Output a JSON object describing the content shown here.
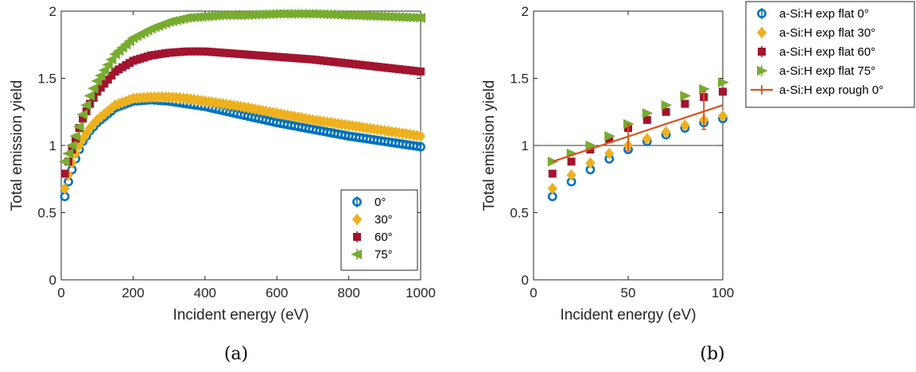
{
  "chart_data": [
    {
      "type": "scatter",
      "panel_label": "(a)",
      "xlabel": "Incident energy (eV)",
      "ylabel": "Total emission yield",
      "xlim": [
        0,
        1000
      ],
      "ylim": [
        0,
        2
      ],
      "xticks": [
        "0",
        "200",
        "400",
        "600",
        "800",
        "1000"
      ],
      "yticks": [
        "0",
        "0.5",
        "1",
        "1.5",
        "2"
      ],
      "legend_position": "bottom-right",
      "series": [
        {
          "name": "0°",
          "color": "#0072BD",
          "marker": "circle",
          "x": [
            10,
            20,
            30,
            40,
            50,
            60,
            80,
            100,
            150,
            200,
            250,
            300,
            350,
            400,
            450,
            500,
            600,
            700,
            800,
            900,
            1000
          ],
          "y": [
            0.62,
            0.73,
            0.82,
            0.9,
            0.97,
            1.03,
            1.11,
            1.17,
            1.28,
            1.33,
            1.34,
            1.33,
            1.31,
            1.29,
            1.26,
            1.23,
            1.17,
            1.12,
            1.07,
            1.03,
            0.99
          ]
        },
        {
          "name": "30°",
          "color": "#EDB120",
          "marker": "diamond",
          "x": [
            10,
            20,
            30,
            40,
            50,
            60,
            80,
            100,
            150,
            200,
            250,
            300,
            350,
            400,
            450,
            500,
            600,
            700,
            800,
            900,
            1000
          ],
          "y": [
            0.68,
            0.78,
            0.87,
            0.94,
            1.0,
            1.05,
            1.13,
            1.19,
            1.3,
            1.35,
            1.36,
            1.36,
            1.35,
            1.33,
            1.31,
            1.29,
            1.24,
            1.19,
            1.15,
            1.11,
            1.07
          ]
        },
        {
          "name": "60°",
          "color": "#A2142F",
          "marker": "square",
          "x": [
            10,
            20,
            30,
            40,
            50,
            60,
            80,
            100,
            150,
            200,
            250,
            300,
            350,
            400,
            450,
            500,
            600,
            700,
            800,
            900,
            1000
          ],
          "y": [
            0.79,
            0.88,
            0.97,
            1.05,
            1.13,
            1.2,
            1.31,
            1.4,
            1.55,
            1.63,
            1.67,
            1.69,
            1.7,
            1.7,
            1.69,
            1.68,
            1.66,
            1.64,
            1.61,
            1.58,
            1.55
          ]
        },
        {
          "name": "75°",
          "color": "#77AC30",
          "marker": "triangle-left",
          "x": [
            10,
            20,
            30,
            40,
            50,
            60,
            80,
            100,
            150,
            200,
            250,
            300,
            350,
            400,
            450,
            500,
            600,
            700,
            800,
            900,
            1000
          ],
          "y": [
            0.88,
            0.94,
            1.0,
            1.07,
            1.14,
            1.23,
            1.37,
            1.48,
            1.68,
            1.8,
            1.87,
            1.92,
            1.95,
            1.96,
            1.97,
            1.97,
            1.98,
            1.98,
            1.97,
            1.96,
            1.95
          ]
        }
      ]
    },
    {
      "type": "scatter",
      "panel_label": "(b)",
      "xlabel": "Incident energy (eV)",
      "ylabel": "Total emission yield",
      "xlim": [
        0,
        100
      ],
      "ylim": [
        0,
        2
      ],
      "xticks": [
        "0",
        "50",
        "100"
      ],
      "yticks": [
        "0",
        "0.5",
        "1",
        "1.5",
        "2"
      ],
      "reference_line_y": 1,
      "legend_position": "outside-right",
      "series": [
        {
          "name": "a-Si:H exp flat 0°",
          "color": "#0072BD",
          "marker": "circle",
          "x": [
            10,
            20,
            30,
            40,
            50,
            60,
            70,
            80,
            90,
            100
          ],
          "y": [
            0.62,
            0.73,
            0.82,
            0.9,
            0.97,
            1.03,
            1.08,
            1.13,
            1.17,
            1.2
          ]
        },
        {
          "name": "a-Si:H exp flat 30°",
          "color": "#EDB120",
          "marker": "diamond",
          "x": [
            10,
            20,
            30,
            40,
            50,
            60,
            70,
            80,
            90,
            100
          ],
          "y": [
            0.68,
            0.78,
            0.87,
            0.94,
            1.0,
            1.05,
            1.1,
            1.15,
            1.19,
            1.22
          ]
        },
        {
          "name": "a-Si:H exp flat 60°",
          "color": "#A2142F",
          "marker": "square",
          "x": [
            10,
            20,
            30,
            40,
            50,
            60,
            70,
            80,
            90,
            100
          ],
          "y": [
            0.79,
            0.88,
            0.97,
            1.05,
            1.13,
            1.19,
            1.25,
            1.31,
            1.36,
            1.4
          ]
        },
        {
          "name": "a-Si:H exp flat 75°",
          "color": "#77AC30",
          "marker": "triangle-right",
          "x": [
            10,
            20,
            30,
            40,
            50,
            60,
            70,
            80,
            90,
            100
          ],
          "y": [
            0.88,
            0.94,
            1.0,
            1.07,
            1.16,
            1.24,
            1.3,
            1.37,
            1.42,
            1.47
          ]
        },
        {
          "name": "a-Si:H exp rough 0°",
          "color": "#D95319",
          "marker": "line",
          "x": [
            10,
            50,
            90,
            100
          ],
          "y": [
            0.88,
            1.06,
            1.26,
            1.3
          ],
          "error": [
            0,
            0.1,
            0.14,
            0
          ],
          "line_x": [
            10,
            100
          ],
          "line_y": [
            0.88,
            1.3
          ]
        }
      ]
    }
  ]
}
